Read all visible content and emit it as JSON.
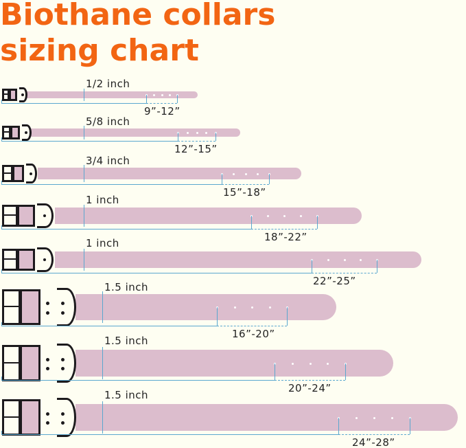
{
  "title": {
    "line1": "Biothane collars",
    "line2": "sizing chart"
  },
  "colors": {
    "title": "#f26513",
    "strap": "#dcbdcd",
    "measure_line": "#5aa7cf",
    "hardware": "#1c1a1d",
    "background": "#fefef2"
  },
  "collars": [
    {
      "width": "1/2 inch",
      "size": "9”-12”",
      "holes": 5
    },
    {
      "width": "5/8 inch",
      "size": "12”-15”",
      "holes": 5
    },
    {
      "width": "3/4 inch",
      "size": "15”-18”",
      "holes": 5
    },
    {
      "width": "1 inch",
      "size": "18”-22”",
      "holes": 5
    },
    {
      "width": "1 inch",
      "size": "22”-25”",
      "holes": 5
    },
    {
      "width": "1.5 inch",
      "size": "16”-20”",
      "holes": 5
    },
    {
      "width": "1.5 inch",
      "size": "20”-24”",
      "holes": 5
    },
    {
      "width": "1.5 inch",
      "size": "24”-28”",
      "holes": 5
    }
  ]
}
